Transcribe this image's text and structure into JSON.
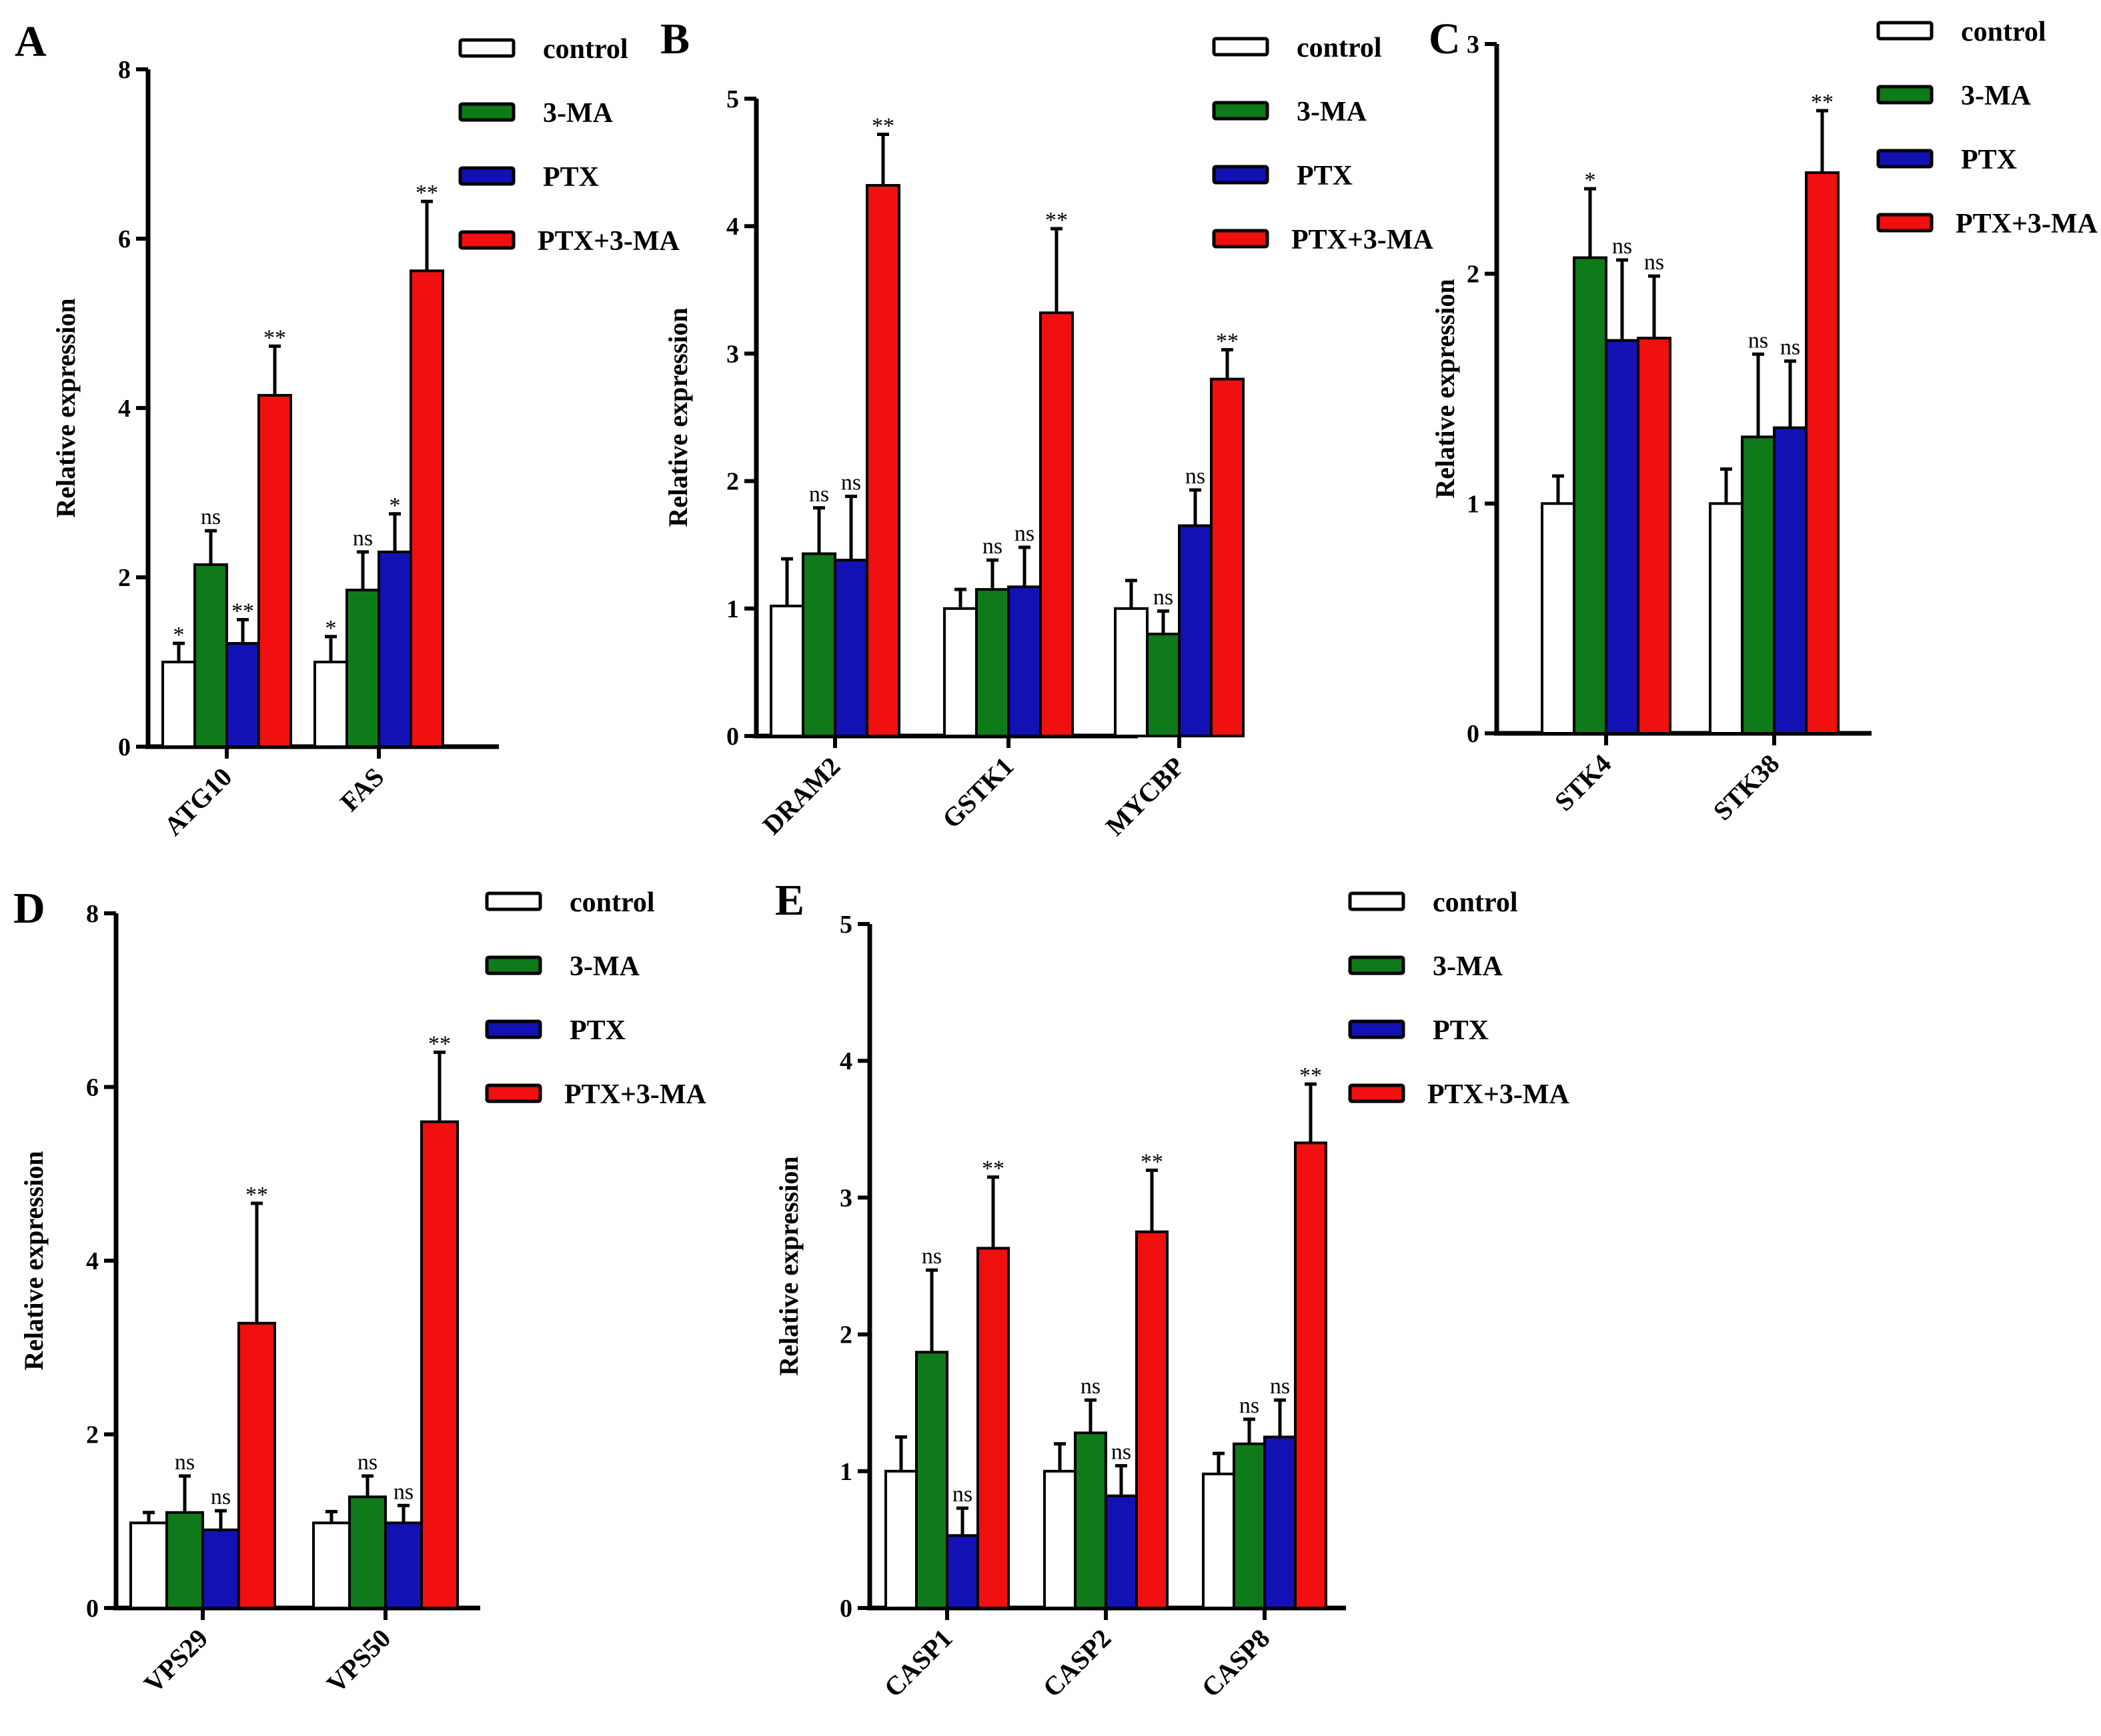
{
  "figure": {
    "legend_entries": [
      "control",
      "3-MA",
      "PTX",
      "PTX+3-MA"
    ],
    "colors": {
      "control": "#ffffff",
      "3-MA": "#0f7a1a",
      "PTX": "#1212b4",
      "PTX+3-MA": "#f01010",
      "axis": "#000000"
    }
  },
  "chart_data": [
    {
      "type": "bar",
      "panel": "A",
      "ylabel": "Relative expression",
      "ylim": [
        0,
        8
      ],
      "yticks": [
        "0",
        "2",
        "4",
        "6",
        "8"
      ],
      "categories": [
        "ATG10",
        "FAS"
      ],
      "series": [
        {
          "name": "control",
          "values": [
            1.0,
            1.0
          ],
          "errors": [
            0.22,
            0.3
          ]
        },
        {
          "name": "3-MA",
          "values": [
            2.15,
            1.85
          ],
          "errors": [
            0.4,
            0.45
          ]
        },
        {
          "name": "PTX",
          "values": [
            1.22,
            2.3
          ],
          "errors": [
            0.28,
            0.45
          ]
        },
        {
          "name": "PTX+3-MA",
          "values": [
            4.15,
            5.62
          ],
          "errors": [
            0.58,
            0.82
          ]
        }
      ],
      "significance": [
        [
          "*",
          "*"
        ],
        [
          "ns",
          "ns"
        ],
        [
          "**",
          "*"
        ],
        [
          "**",
          "**"
        ]
      ]
    },
    {
      "type": "bar",
      "panel": "B",
      "ylabel": "Relative expression",
      "ylim": [
        0,
        5
      ],
      "yticks": [
        "0",
        "1",
        "2",
        "3",
        "4",
        "5"
      ],
      "categories": [
        "DRAM2",
        "GSTK1",
        "MYCBP"
      ],
      "series": [
        {
          "name": "control",
          "values": [
            1.02,
            1.0,
            1.0
          ],
          "errors": [
            0.37,
            0.15,
            0.22
          ]
        },
        {
          "name": "3-MA",
          "values": [
            1.43,
            1.15,
            0.8
          ],
          "errors": [
            0.36,
            0.23,
            0.18
          ]
        },
        {
          "name": "PTX",
          "values": [
            1.38,
            1.17,
            1.65
          ],
          "errors": [
            0.5,
            0.31,
            0.28
          ]
        },
        {
          "name": "PTX+3-MA",
          "values": [
            4.32,
            3.32,
            2.8
          ],
          "errors": [
            0.4,
            0.66,
            0.23
          ]
        }
      ],
      "significance": [
        [
          "",
          "",
          ""
        ],
        [
          "ns",
          "ns",
          "ns"
        ],
        [
          "ns",
          "ns",
          "ns"
        ],
        [
          "**",
          "**",
          "**"
        ]
      ]
    },
    {
      "type": "bar",
      "panel": "C",
      "ylabel": "Relative expression",
      "ylim": [
        0,
        3
      ],
      "yticks": [
        "0",
        "1",
        "2",
        "3"
      ],
      "categories": [
        "STK4",
        "STK38"
      ],
      "series": [
        {
          "name": "control",
          "values": [
            1.0,
            1.0
          ],
          "errors": [
            0.12,
            0.15
          ]
        },
        {
          "name": "3-MA",
          "values": [
            2.07,
            1.29
          ],
          "errors": [
            0.3,
            0.36
          ]
        },
        {
          "name": "PTX",
          "values": [
            1.71,
            1.33
          ],
          "errors": [
            0.35,
            0.29
          ]
        },
        {
          "name": "PTX+3-MA",
          "values": [
            1.72,
            2.44
          ],
          "errors": [
            0.27,
            0.27
          ]
        }
      ],
      "significance": [
        [
          "",
          ""
        ],
        [
          "*",
          "ns"
        ],
        [
          "ns",
          "ns"
        ],
        [
          "ns",
          "**"
        ]
      ]
    },
    {
      "type": "bar",
      "panel": "D",
      "ylabel": "Relative expression",
      "ylim": [
        0,
        8
      ],
      "yticks": [
        "0",
        "2",
        "4",
        "6",
        "8"
      ],
      "categories": [
        "VPS29",
        "VPS50"
      ],
      "series": [
        {
          "name": "control",
          "values": [
            0.98,
            0.98
          ],
          "errors": [
            0.12,
            0.13
          ]
        },
        {
          "name": "3-MA",
          "values": [
            1.1,
            1.28
          ],
          "errors": [
            0.42,
            0.24
          ]
        },
        {
          "name": "PTX",
          "values": [
            0.9,
            0.98
          ],
          "errors": [
            0.22,
            0.2
          ]
        },
        {
          "name": "PTX+3-MA",
          "values": [
            3.28,
            5.6
          ],
          "errors": [
            1.38,
            0.8
          ]
        }
      ],
      "significance": [
        [
          "",
          ""
        ],
        [
          "ns",
          "ns"
        ],
        [
          "ns",
          "ns"
        ],
        [
          "**",
          "**"
        ]
      ]
    },
    {
      "type": "bar",
      "panel": "E",
      "ylabel": "Relative expression",
      "ylim": [
        0,
        5
      ],
      "yticks": [
        "0",
        "1",
        "2",
        "3",
        "4",
        "5"
      ],
      "categories": [
        "CASP1",
        "CASP2",
        "CASP8"
      ],
      "series": [
        {
          "name": "control",
          "values": [
            1.0,
            1.0,
            0.98
          ],
          "errors": [
            0.25,
            0.2,
            0.15
          ]
        },
        {
          "name": "3-MA",
          "values": [
            1.87,
            1.28,
            1.2
          ],
          "errors": [
            0.6,
            0.24,
            0.18
          ]
        },
        {
          "name": "PTX",
          "values": [
            0.53,
            0.82,
            1.25
          ],
          "errors": [
            0.2,
            0.22,
            0.27
          ]
        },
        {
          "name": "PTX+3-MA",
          "values": [
            2.63,
            2.75,
            3.4
          ],
          "errors": [
            0.52,
            0.45,
            0.43
          ]
        }
      ],
      "significance": [
        [
          "",
          "",
          ""
        ],
        [
          "ns",
          "ns",
          "ns"
        ],
        [
          "ns",
          "ns",
          "ns"
        ],
        [
          "**",
          "**",
          "**"
        ]
      ]
    }
  ]
}
